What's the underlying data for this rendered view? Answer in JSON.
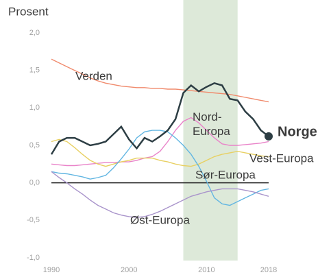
{
  "chart_data": {
    "type": "line",
    "y_axis_label": "Prosent",
    "x": [
      1990,
      1991,
      1992,
      1993,
      1994,
      1995,
      1996,
      1997,
      1998,
      1999,
      2000,
      2001,
      2002,
      2003,
      2004,
      2005,
      2006,
      2007,
      2008,
      2009,
      2010,
      2011,
      2012,
      2013,
      2014,
      2015,
      2016,
      2017,
      2018
    ],
    "series": [
      {
        "name": "Verden",
        "color": "#f08a6c",
        "values": [
          1.65,
          1.6,
          1.55,
          1.5,
          1.45,
          1.4,
          1.36,
          1.33,
          1.31,
          1.29,
          1.28,
          1.27,
          1.27,
          1.26,
          1.26,
          1.25,
          1.25,
          1.24,
          1.23,
          1.22,
          1.21,
          1.2,
          1.19,
          1.18,
          1.16,
          1.14,
          1.12,
          1.1,
          1.08
        ]
      },
      {
        "name": "Nord-Europa",
        "color": "#e983c9",
        "values": [
          0.25,
          0.24,
          0.23,
          0.23,
          0.24,
          0.25,
          0.26,
          0.27,
          0.27,
          0.28,
          0.28,
          0.3,
          0.33,
          0.35,
          0.42,
          0.55,
          0.7,
          0.82,
          0.87,
          0.8,
          0.7,
          0.6,
          0.52,
          0.5,
          0.5,
          0.51,
          0.52,
          0.53,
          0.55
        ]
      },
      {
        "name": "Vest-Europa",
        "color": "#e8d062",
        "values": [
          0.55,
          0.58,
          0.55,
          0.47,
          0.38,
          0.3,
          0.25,
          0.22,
          0.25,
          0.28,
          0.3,
          0.33,
          0.33,
          0.33,
          0.3,
          0.28,
          0.25,
          0.23,
          0.22,
          0.25,
          0.3,
          0.35,
          0.38,
          0.4,
          0.42,
          0.4,
          0.38,
          0.36,
          0.35
        ]
      },
      {
        "name": "Sør-Europa",
        "color": "#62b6e2",
        "values": [
          0.15,
          0.13,
          0.12,
          0.1,
          0.08,
          0.05,
          0.07,
          0.1,
          0.2,
          0.32,
          0.45,
          0.6,
          0.68,
          0.7,
          0.7,
          0.68,
          0.6,
          0.5,
          0.38,
          0.22,
          0.02,
          -0.2,
          -0.28,
          -0.3,
          -0.25,
          -0.2,
          -0.15,
          -0.1,
          -0.08
        ]
      },
      {
        "name": "Øst-Europa",
        "color": "#a994cb",
        "values": [
          0.15,
          0.07,
          0.0,
          -0.08,
          -0.15,
          -0.23,
          -0.3,
          -0.35,
          -0.4,
          -0.43,
          -0.45,
          -0.46,
          -0.45,
          -0.42,
          -0.38,
          -0.33,
          -0.28,
          -0.23,
          -0.18,
          -0.15,
          -0.12,
          -0.1,
          -0.08,
          -0.08,
          -0.08,
          -0.1,
          -0.12,
          -0.15,
          -0.18
        ]
      },
      {
        "name": "Norge",
        "color": "#2d3e44",
        "values": [
          0.38,
          0.55,
          0.6,
          0.6,
          0.55,
          0.5,
          0.52,
          0.55,
          0.65,
          0.75,
          0.58,
          0.46,
          0.6,
          0.55,
          0.62,
          0.7,
          0.85,
          1.2,
          1.3,
          1.22,
          1.28,
          1.33,
          1.3,
          1.12,
          1.1,
          0.95,
          0.85,
          0.7,
          0.62
        ]
      }
    ],
    "highlight": {
      "x": [
        2007,
        2014
      ],
      "color": "#dde9d9"
    },
    "xlim": [
      1990,
      2018
    ],
    "xticks": [
      1990,
      2000,
      2010,
      2018
    ],
    "ylim": [
      -1,
      2
    ],
    "yticks": [
      {
        "value": 2,
        "label": "2,0"
      },
      {
        "value": 1.5,
        "label": "1,5"
      },
      {
        "value": 1,
        "label": "1,0"
      },
      {
        "value": 0.5,
        "label": "0,5"
      },
      {
        "value": 0,
        "label": "0,0"
      },
      {
        "value": -0.5,
        "label": "-0,5"
      },
      {
        "value": -1,
        "label": "-1,0"
      }
    ],
    "grid": false
  }
}
